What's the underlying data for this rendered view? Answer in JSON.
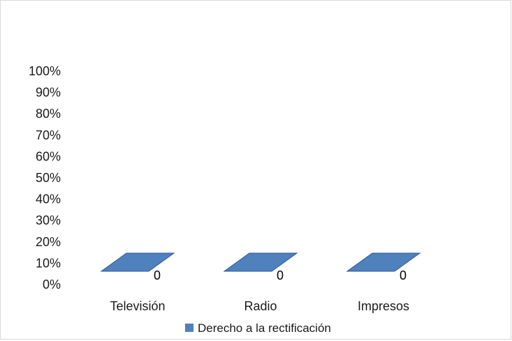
{
  "chart_data": {
    "type": "bar",
    "style": "3d-clustered-column",
    "categories": [
      "Televisión",
      "Radio",
      "Impresos"
    ],
    "series": [
      {
        "name": "Derecho a la rectificación",
        "values": [
          0,
          0,
          0
        ],
        "data_labels": [
          "0",
          "0",
          "0"
        ],
        "color": "#4f81bd"
      }
    ],
    "y_tick_labels": [
      "0%",
      "10%",
      "20%",
      "30%",
      "40%",
      "50%",
      "60%",
      "70%",
      "80%",
      "90%",
      "100%"
    ],
    "ylim": [
      0,
      1
    ],
    "y_format": "percent",
    "grid": false,
    "legend_position": "bottom"
  },
  "colors": {
    "series_fill": "#4f81bd",
    "series_edge": "#2f5597",
    "text": "#1a1a1a",
    "frame_border": "#d9d9d9"
  }
}
